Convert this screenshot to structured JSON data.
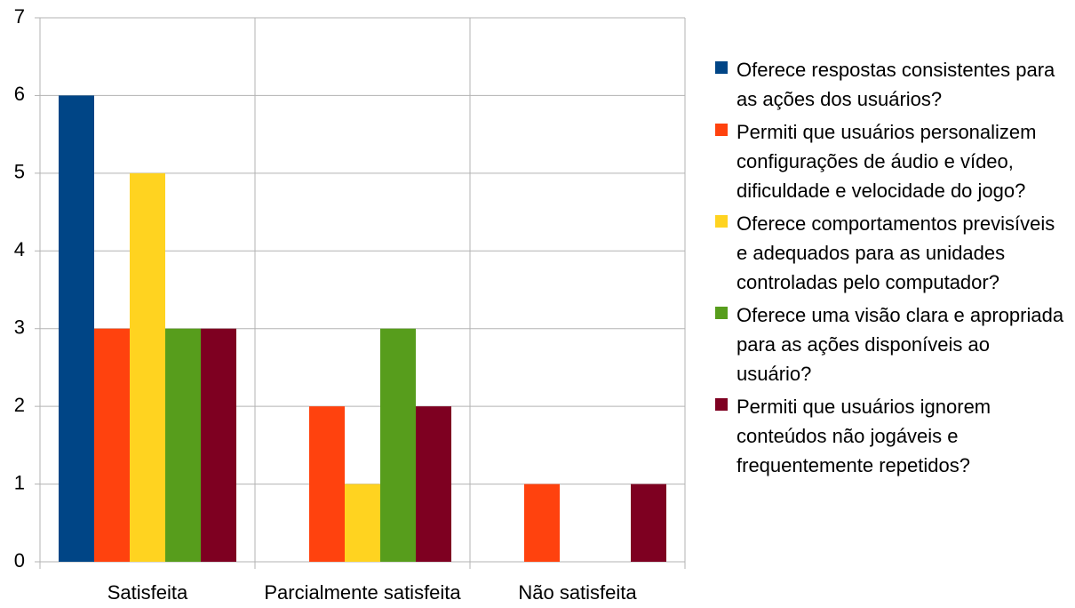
{
  "chart_data": {
    "type": "bar",
    "categories": [
      "Satisfeita",
      "Parcialmente satisfeita",
      "Não satisfeita"
    ],
    "series": [
      {
        "name": "Oferece respostas consistentes para as ações dos usuários?",
        "color": "#004586",
        "values": [
          6,
          0,
          0
        ]
      },
      {
        "name": "Permiti que usuários personalizem configurações de áudio e vídeo, dificuldade e velocidade do jogo?",
        "color": "#ff420e",
        "values": [
          3,
          2,
          1
        ]
      },
      {
        "name": "Oferece comportamentos previsíveis e adequados para as unidades controladas pelo computador?",
        "color": "#ffd320",
        "values": [
          5,
          1,
          0
        ]
      },
      {
        "name": "Oferece uma visão clara e apropriada para as ações disponíveis ao usuário?",
        "color": "#579d1c",
        "values": [
          3,
          3,
          0
        ]
      },
      {
        "name": "Permiti que usuários ignorem conteúdos não jogáveis e frequentemente repetidos?",
        "color": "#7e0021",
        "values": [
          3,
          2,
          1
        ]
      }
    ],
    "ylim": [
      0,
      7
    ],
    "yticks": [
      0,
      1,
      2,
      3,
      4,
      5,
      6,
      7
    ],
    "grid": true,
    "legend": "right"
  }
}
